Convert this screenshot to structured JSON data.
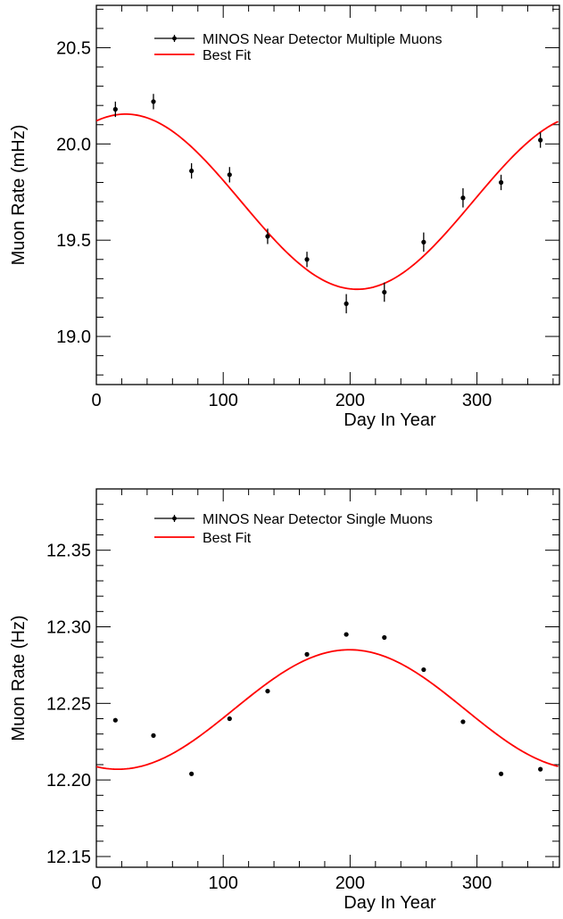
{
  "colors": {
    "data": "#000000",
    "fit": "#ff0000",
    "frame": "#000000"
  },
  "chart_data": [
    {
      "type": "scatter",
      "xlabel": "Day In Year",
      "ylabel": "Muon Rate (mHz)",
      "xlim": [
        0,
        365
      ],
      "ylim": [
        18.75,
        20.72
      ],
      "x_ticks": [
        0,
        100,
        200,
        300
      ],
      "x_ticklabels": [
        "0",
        "100",
        "200",
        "300"
      ],
      "y_ticks": [
        19.0,
        19.5,
        20.0,
        20.5
      ],
      "y_ticklabels": [
        "19.0",
        "19.5",
        "20.0",
        "20.5"
      ],
      "legend": {
        "placement": "top-center",
        "entries": [
          "MINOS Near Detector Multiple Muons",
          "Best Fit"
        ]
      },
      "series": [
        {
          "name": "MINOS Near Detector Multiple Muons",
          "style": "points-with-errorbars",
          "points": [
            {
              "x": 15,
              "y": 20.18,
              "err": 0.04
            },
            {
              "x": 45,
              "y": 20.22,
              "err": 0.04
            },
            {
              "x": 75,
              "y": 19.86,
              "err": 0.04
            },
            {
              "x": 105,
              "y": 19.84,
              "err": 0.04
            },
            {
              "x": 135,
              "y": 19.52,
              "err": 0.04
            },
            {
              "x": 166,
              "y": 19.4,
              "err": 0.04
            },
            {
              "x": 197,
              "y": 19.17,
              "err": 0.05
            },
            {
              "x": 227,
              "y": 19.23,
              "err": 0.05
            },
            {
              "x": 258,
              "y": 19.49,
              "err": 0.05
            },
            {
              "x": 289,
              "y": 19.72,
              "err": 0.05
            },
            {
              "x": 319,
              "y": 19.8,
              "err": 0.04
            },
            {
              "x": 350,
              "y": 20.02,
              "err": 0.04
            }
          ]
        },
        {
          "name": "Best Fit",
          "style": "line",
          "model": {
            "form": "cosine",
            "mean": 19.7,
            "amplitude": 0.455,
            "phase_day": 23,
            "period_days": 365
          }
        }
      ]
    },
    {
      "type": "scatter",
      "xlabel": "Day In Year",
      "ylabel": "Muon Rate (Hz)",
      "xlim": [
        0,
        365
      ],
      "ylim": [
        12.143,
        12.39
      ],
      "x_ticks": [
        0,
        100,
        200,
        300
      ],
      "x_ticklabels": [
        "0",
        "100",
        "200",
        "300"
      ],
      "y_ticks": [
        12.15,
        12.2,
        12.25,
        12.3,
        12.35
      ],
      "y_ticklabels": [
        "12.15",
        "12.20",
        "12.25",
        "12.30",
        "12.35"
      ],
      "legend": {
        "placement": "top-center",
        "entries": [
          "MINOS Near Detector Single Muons",
          "Best Fit"
        ]
      },
      "series": [
        {
          "name": "MINOS Near Detector Single Muons",
          "style": "points-with-errorbars",
          "points": [
            {
              "x": 15,
              "y": 12.239,
              "err": 0.0006
            },
            {
              "x": 45,
              "y": 12.229,
              "err": 0.0006
            },
            {
              "x": 75,
              "y": 12.204,
              "err": 0.0006
            },
            {
              "x": 105,
              "y": 12.24,
              "err": 0.0006
            },
            {
              "x": 135,
              "y": 12.258,
              "err": 0.0006
            },
            {
              "x": 166,
              "y": 12.282,
              "err": 0.0006
            },
            {
              "x": 197,
              "y": 12.295,
              "err": 0.0006
            },
            {
              "x": 227,
              "y": 12.293,
              "err": 0.0006
            },
            {
              "x": 258,
              "y": 12.272,
              "err": 0.0006
            },
            {
              "x": 289,
              "y": 12.238,
              "err": 0.0006
            },
            {
              "x": 319,
              "y": 12.204,
              "err": 0.0006
            },
            {
              "x": 350,
              "y": 12.207,
              "err": 0.0006
            }
          ]
        },
        {
          "name": "Best Fit",
          "style": "line",
          "model": {
            "form": "cosine",
            "mean": 12.246,
            "amplitude": -0.039,
            "phase_day": 17,
            "period_days": 365
          }
        }
      ]
    }
  ]
}
